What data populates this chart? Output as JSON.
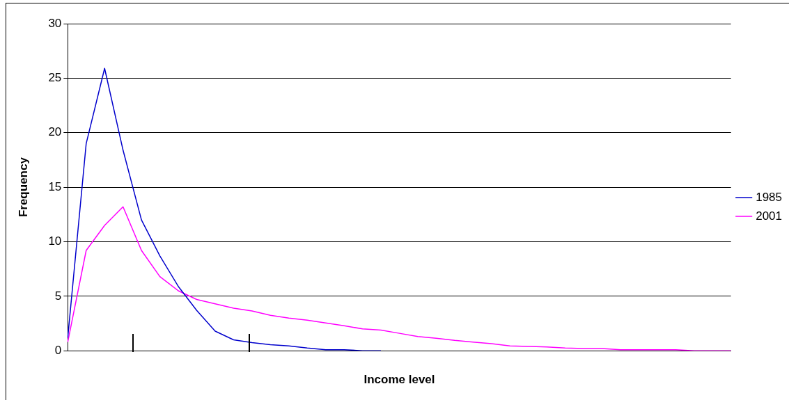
{
  "chart_data": {
    "type": "line",
    "xlabel": "Income level",
    "ylabel": "Frequency",
    "categories": [
      null,
      null,
      null,
      null,
      null,
      null,
      null,
      null,
      null,
      null,
      null,
      null,
      null,
      null,
      null,
      null,
      null,
      null,
      null,
      null,
      null,
      null,
      null,
      null,
      null,
      null,
      null,
      null,
      null,
      null,
      null,
      null,
      null,
      null,
      null,
      null,
      null
    ],
    "series": [
      {
        "name": "1985",
        "color": "#0000cc",
        "values": [
          1.2,
          19.0,
          25.9,
          18.4,
          12.0,
          8.7,
          5.9,
          3.7,
          1.8,
          1.0,
          0.75,
          0.55,
          0.45,
          0.25,
          0.1,
          0.1,
          0,
          0,
          null,
          null,
          null,
          null,
          null,
          null,
          null,
          null,
          null,
          null,
          null,
          null,
          null,
          null,
          null,
          null,
          null,
          null,
          null
        ]
      },
      {
        "name": "2001",
        "color": "#ff00ff",
        "values": [
          0.8,
          9.2,
          11.5,
          13.2,
          9.2,
          6.8,
          5.5,
          4.7,
          4.3,
          3.9,
          3.65,
          3.25,
          3.0,
          2.8,
          2.55,
          2.3,
          2.0,
          1.9,
          1.6,
          1.3,
          1.15,
          0.95,
          0.8,
          0.65,
          0.45,
          0.4,
          0.35,
          0.25,
          0.2,
          0.2,
          0.1,
          0.1,
          0.1,
          0.1,
          0,
          0,
          0
        ]
      }
    ],
    "ylim": [
      0,
      30
    ],
    "yticks": [
      0,
      5,
      10,
      15,
      20,
      25,
      30
    ],
    "grid": "y",
    "legend": "right",
    "marker": "none",
    "line_style": "solid"
  }
}
